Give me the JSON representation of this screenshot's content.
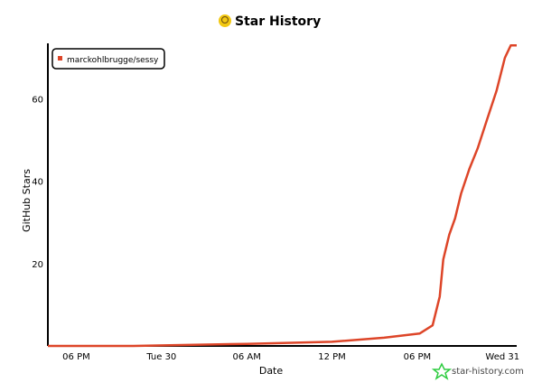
{
  "header": {
    "title": "Star History",
    "logo_icon": "star-history-avatar-icon"
  },
  "watermark": {
    "text": "star-history.com",
    "icon": "star-history-logo-icon",
    "color": "#2ecc40"
  },
  "chart_data": {
    "type": "line",
    "title": "Star History",
    "xlabel": "Date",
    "ylabel": "GitHub Stars",
    "xlim": [
      "29 16:00",
      "31 01:00"
    ],
    "ylim": [
      0,
      73.5
    ],
    "x_ticks": [
      {
        "at": "29 18:00",
        "label": "06 PM"
      },
      {
        "at": "30 00:00",
        "label": "Tue 30"
      },
      {
        "at": "30 06:00",
        "label": "06 AM"
      },
      {
        "at": "30 12:00",
        "label": "12 PM"
      },
      {
        "at": "30 18:00",
        "label": "06 PM"
      },
      {
        "at": "31 00:00",
        "label": "Wed 31"
      }
    ],
    "y_ticks": [
      20,
      40,
      60
    ],
    "grid": false,
    "legend": "top-left",
    "series": [
      {
        "name": "marckohlbrugge/sessy",
        "color": "#dd4528",
        "x": [
          "29 16:00",
          "29 22:00",
          "30 06:00",
          "30 12:00",
          "30 15:40",
          "30 18:10",
          "30 19:05",
          "30 19:35",
          "30 19:50",
          "30 20:15",
          "30 20:40",
          "30 21:05",
          "30 21:40",
          "30 22:15",
          "30 22:55",
          "30 23:35",
          "31 00:10",
          "31 00:35",
          "31 01:00"
        ],
        "y": [
          0,
          0,
          0.5,
          1,
          2,
          3,
          5,
          12,
          21,
          27,
          31,
          37,
          43,
          48,
          55,
          62,
          70,
          73,
          73
        ]
      }
    ]
  }
}
